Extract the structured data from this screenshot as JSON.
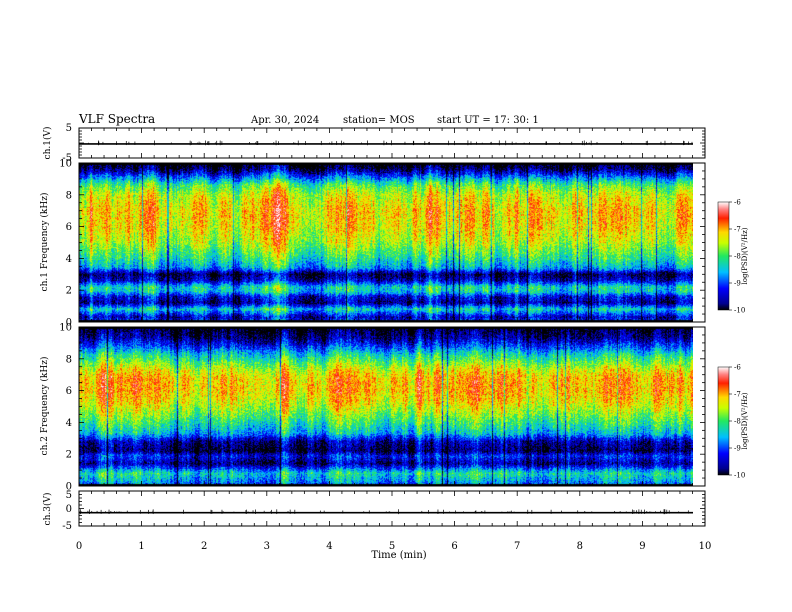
{
  "header": {
    "title": "VLF Spectra",
    "date": "Apr. 30, 2024",
    "station": "station= MOS",
    "start": "start  UT  =   17: 30: 1"
  },
  "chart_data": [
    {
      "type": "line",
      "ylabel": "ch.1(V)",
      "ylim": [
        -5,
        5
      ],
      "yticks": [
        "5",
        "-5"
      ],
      "xlim": [
        0,
        10
      ],
      "series": [
        {
          "values_constant": -0.3
        }
      ]
    },
    {
      "type": "heatmap",
      "ylabel": "ch.1 Frequency (kHz)",
      "ylim": [
        0,
        10
      ],
      "yticks": [
        "0",
        "2",
        "4",
        "6",
        "8",
        "10"
      ],
      "xlim": [
        0,
        10
      ],
      "colorbar": {
        "label": "log(PSD)(V²/Hz)",
        "range": [
          -10,
          -6
        ],
        "ticks": [
          "-6",
          "-7",
          "-8",
          "-9",
          "-10"
        ]
      },
      "freq_profile_khz": [
        [
          0,
          -8.8
        ],
        [
          0.3,
          -9.5
        ],
        [
          0.8,
          -8.3
        ],
        [
          1.2,
          -9.6
        ],
        [
          1.6,
          -9.3
        ],
        [
          1.9,
          -8.4
        ],
        [
          2.2,
          -8.3
        ],
        [
          2.6,
          -9.4
        ],
        [
          3.0,
          -9.8
        ],
        [
          3.4,
          -8.6
        ],
        [
          4.0,
          -8.1
        ],
        [
          5.0,
          -7.5
        ],
        [
          6.0,
          -7.2
        ],
        [
          7.0,
          -7.1
        ],
        [
          8.0,
          -7.4
        ],
        [
          8.6,
          -7.9
        ],
        [
          9.0,
          -8.6
        ],
        [
          9.4,
          -9.4
        ],
        [
          9.7,
          -9.9
        ],
        [
          10,
          -10
        ]
      ]
    },
    {
      "type": "heatmap",
      "ylabel": "ch.2 Frequency (kHz)",
      "ylim": [
        0,
        10
      ],
      "yticks": [
        "0",
        "2",
        "4",
        "6",
        "8",
        "10"
      ],
      "xlim": [
        0,
        10
      ],
      "colorbar": {
        "label": "log(PSD)(V²/Hz)",
        "range": [
          -10,
          -6
        ],
        "ticks": [
          "-6",
          "-7",
          "-8",
          "-9",
          "-10"
        ]
      },
      "freq_profile_khz": [
        [
          0,
          -9.0
        ],
        [
          0.3,
          -8.6
        ],
        [
          0.8,
          -8.2
        ],
        [
          1.4,
          -9.6
        ],
        [
          1.9,
          -9.1
        ],
        [
          2.2,
          -9.8
        ],
        [
          2.8,
          -9.5
        ],
        [
          3.3,
          -8.5
        ],
        [
          4.0,
          -8.0
        ],
        [
          4.6,
          -7.6
        ],
        [
          5.3,
          -7.2
        ],
        [
          6.0,
          -7.0
        ],
        [
          6.8,
          -7.0
        ],
        [
          7.3,
          -7.3
        ],
        [
          7.8,
          -7.8
        ],
        [
          8.3,
          -8.3
        ],
        [
          8.8,
          -9.0
        ],
        [
          9.3,
          -9.6
        ],
        [
          10,
          -10
        ]
      ]
    },
    {
      "type": "line",
      "ylabel": "ch.3(V)",
      "ylim": [
        -5,
        5
      ],
      "yticks": [
        "5",
        "0",
        "-5"
      ],
      "xlim": [
        0,
        10
      ],
      "xlabel": "Time  (min)",
      "xticks": [
        "0",
        "1",
        "2",
        "3",
        "4",
        "5",
        "6",
        "7",
        "8",
        "9",
        "10"
      ],
      "series": [
        {
          "values_constant": -1.2
        }
      ]
    }
  ]
}
